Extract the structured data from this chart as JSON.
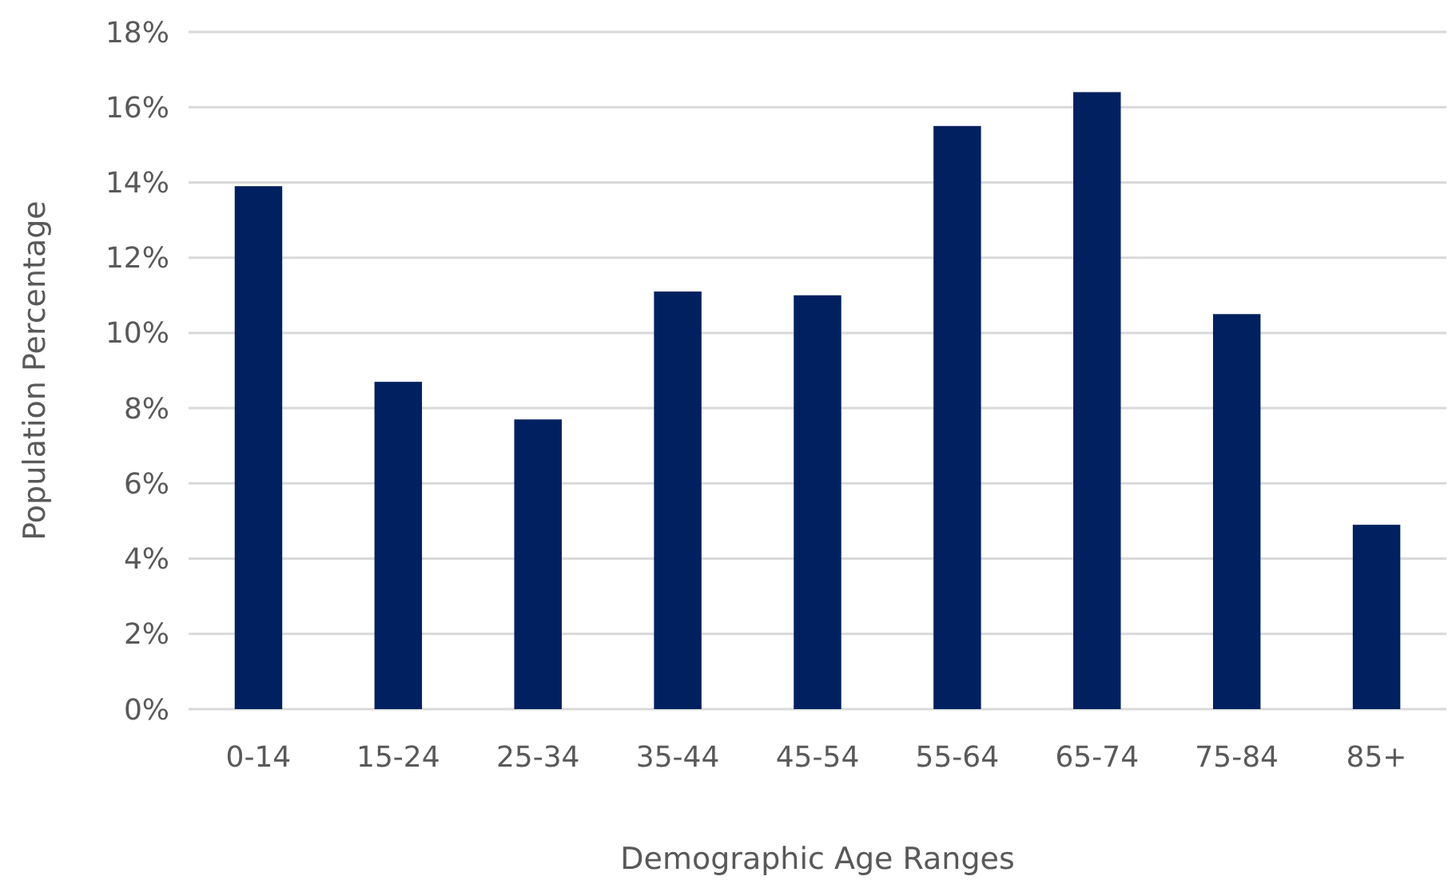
{
  "chart_data": {
    "type": "bar",
    "xlabel": "Demographic Age Ranges",
    "ylabel": "Population Percentage",
    "categories": [
      "0-14",
      "15-24",
      "25-34",
      "35-44",
      "45-54",
      "55-64",
      "65-74",
      "75-84",
      "85+"
    ],
    "values": [
      13.9,
      8.7,
      7.7,
      11.1,
      11.0,
      15.5,
      16.4,
      10.5,
      4.9
    ],
    "color": "#002060",
    "ylim": [
      0,
      18
    ],
    "yticks": [
      {
        "value": 0,
        "label": "0%"
      },
      {
        "value": 2,
        "label": "2%"
      },
      {
        "value": 4,
        "label": "4%"
      },
      {
        "value": 6,
        "label": "6%"
      },
      {
        "value": 8,
        "label": "8%"
      },
      {
        "value": 10,
        "label": "10%"
      },
      {
        "value": 12,
        "label": "12%"
      },
      {
        "value": 14,
        "label": "14%"
      },
      {
        "value": 16,
        "label": "16%"
      },
      {
        "value": 18,
        "label": "18%"
      }
    ],
    "grid": "y"
  }
}
